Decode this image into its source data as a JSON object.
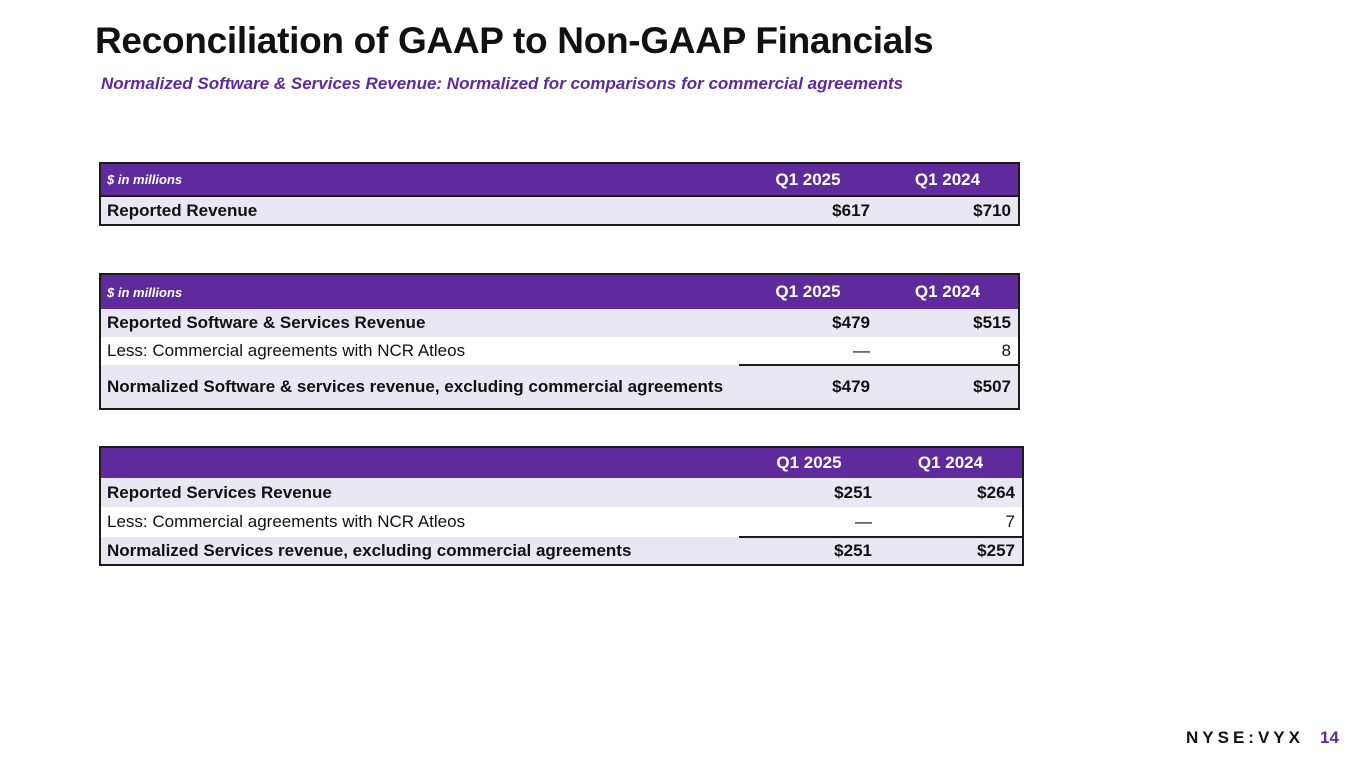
{
  "title": "Reconciliation of GAAP to Non-GAAP Financials",
  "subtitle": "Normalized Software & Services Revenue: Normalized for comparisons for commercial agreements",
  "table1": {
    "unit": "$ in millions",
    "col1": "Q1 2025",
    "col2": "Q1 2024",
    "rows": [
      {
        "label": "Reported Revenue",
        "v1": "$617",
        "v2": "$710"
      }
    ]
  },
  "table2": {
    "unit": "$ in millions",
    "col1": "Q1 2025",
    "col2": "Q1 2024",
    "rows": [
      {
        "label": "Reported Software & Services Revenue",
        "v1": "$479",
        "v2": "$515"
      },
      {
        "label": "Less: Commercial agreements with NCR Atleos",
        "v1": "—",
        "v2": "8"
      },
      {
        "label": "Normalized Software & services revenue, excluding commercial agreements",
        "v1": "$479",
        "v2": "$507"
      }
    ]
  },
  "table3": {
    "unit": "",
    "col1": "Q1 2025",
    "col2": "Q1 2024",
    "rows": [
      {
        "label": "Reported Services Revenue",
        "v1": "$251",
        "v2": "$264"
      },
      {
        "label": "Less: Commercial agreements with NCR Atleos",
        "v1": "—",
        "v2": "7"
      },
      {
        "label": "Normalized Services revenue, excluding commercial agreements",
        "v1": "$251",
        "v2": "$257"
      }
    ]
  },
  "footer": {
    "exchange": "NYSE:VYX",
    "page_number": "14"
  },
  "colors": {
    "header_purple": "#5f2a9c",
    "row_shade": "#e9e7f1"
  }
}
